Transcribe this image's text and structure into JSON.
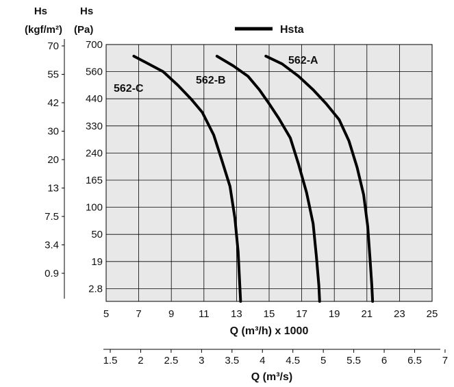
{
  "chart_data": {
    "type": "line",
    "title": "",
    "legend": {
      "label": "Hsta",
      "placement": "top-center"
    },
    "left_axis_outer": {
      "header": [
        "Hs",
        "(kgf/m²)"
      ],
      "ticks": [
        "70",
        "55",
        "42",
        "30",
        "20",
        "13",
        "7.5",
        "3.4",
        "0.9"
      ]
    },
    "left_axis_inner": {
      "header": [
        "Hs",
        "(Pa)"
      ],
      "ticks": [
        "700",
        "560",
        "440",
        "330",
        "240",
        "165",
        "100",
        "50",
        "19",
        "2.8"
      ]
    },
    "x_axis": {
      "label": "Q (m³/h) x 1000",
      "ticks": [
        5,
        7,
        9,
        11,
        13,
        15,
        17,
        19,
        21,
        23,
        25
      ],
      "range": [
        5,
        25
      ]
    },
    "x_axis_secondary": {
      "label": "Q (m³/s)",
      "ticks": [
        "1.5",
        "2",
        "2.5",
        "3",
        "3.5",
        "4",
        "4.5",
        "5",
        "5.5",
        "6",
        "6.5",
        "7"
      ]
    },
    "grid": true,
    "plot_background": "#e8e8e8",
    "curve_color": "#000000",
    "y_scale_note": "pressure axis graduated by tick index (non-linear)",
    "series": [
      {
        "name": "562-C",
        "x": [
          6.7,
          7.6,
          8.5,
          9.4,
          10.2,
          10.9,
          11.6,
          12.1,
          12.6,
          12.9,
          13.1,
          13.2,
          13.25
        ],
        "y": [
          640,
          600,
          560,
          500,
          440,
          385,
          300,
          220,
          150,
          80,
          30,
          5,
          0
        ]
      },
      {
        "name": "562-B",
        "x": [
          11.8,
          12.8,
          13.7,
          14.4,
          15.0,
          15.6,
          16.3,
          16.8,
          17.3,
          17.7,
          17.9,
          18.05,
          18.1
        ],
        "y": [
          640,
          590,
          540,
          480,
          420,
          360,
          290,
          210,
          135,
          70,
          25,
          5,
          0
        ]
      },
      {
        "name": "562-A",
        "x": [
          14.8,
          15.8,
          16.8,
          17.7,
          18.5,
          19.3,
          19.9,
          20.4,
          20.8,
          21.05,
          21.2,
          21.3,
          21.35
        ],
        "y": [
          640,
          600,
          540,
          480,
          420,
          355,
          280,
          200,
          130,
          65,
          20,
          5,
          0
        ]
      }
    ]
  }
}
